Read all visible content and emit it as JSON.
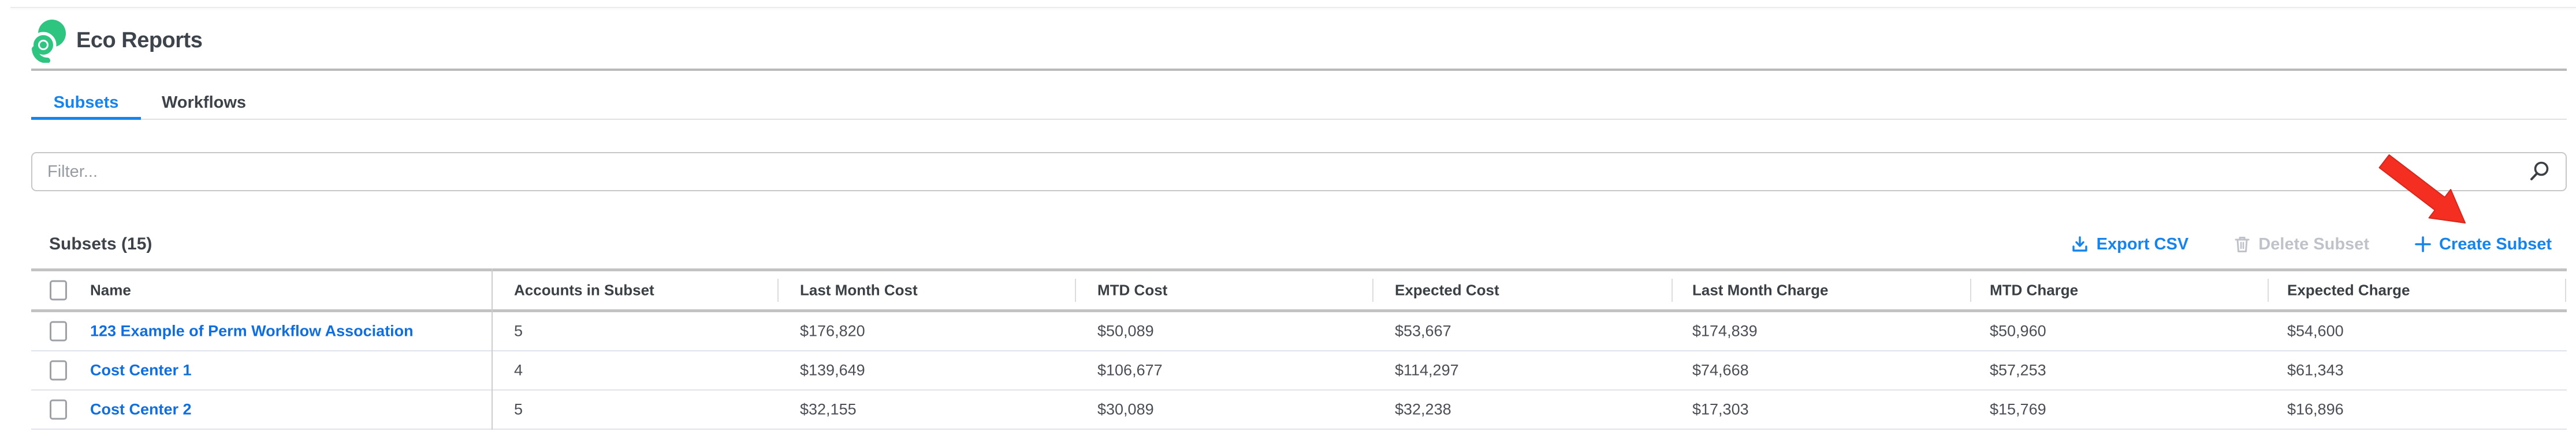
{
  "colors": {
    "accent_blue": "#1584ec",
    "link_blue": "#0f6fdf",
    "logo_green": "#2ec580",
    "arrow_red": "#f42f22",
    "disabled_gray": "#bfc3c9",
    "heading_text": "#3e4349",
    "border_thick": "#c2c2c2",
    "row_separator": "#e0e3ea"
  },
  "icons": {
    "logo": "eco-spiral-logo",
    "filter": "search-icon",
    "export_csv": "download-icon",
    "delete_subset": "trash-icon",
    "create_subset": "plus-icon",
    "annotation": "red-arrow"
  },
  "header": {
    "app_title": "Eco Reports"
  },
  "tabs": [
    {
      "label": "Subsets",
      "active": true
    },
    {
      "label": "Workflows",
      "active": false
    }
  ],
  "filter": {
    "placeholder": "Filter...",
    "value": ""
  },
  "toolbar": {
    "heading": "Subsets (15)",
    "export_csv": "Export CSV",
    "delete_subset": "Delete Subset",
    "create_subset": "Create Subset"
  },
  "annotation": {
    "type": "red-arrow",
    "points_to": "Create Subset"
  },
  "table": {
    "columns": [
      "Name",
      "Accounts in Subset",
      "Last Month Cost",
      "MTD Cost",
      "Expected Cost",
      "Last Month Charge",
      "MTD Charge",
      "Expected Charge"
    ],
    "rows": [
      {
        "name": "123 Example of Perm Workflow Association",
        "accounts": "5",
        "last_month_cost": "$176,820",
        "mtd_cost": "$50,089",
        "expected_cost": "$53,667",
        "last_month_charge": "$174,839",
        "mtd_charge": "$50,960",
        "expected_charge": "$54,600"
      },
      {
        "name": "Cost Center 1",
        "accounts": "4",
        "last_month_cost": "$139,649",
        "mtd_cost": "$106,677",
        "expected_cost": "$114,297",
        "last_month_charge": "$74,668",
        "mtd_charge": "$57,253",
        "expected_charge": "$61,343"
      },
      {
        "name": "Cost Center 2",
        "accounts": "5",
        "last_month_cost": "$32,155",
        "mtd_cost": "$30,089",
        "expected_cost": "$32,238",
        "last_month_charge": "$17,303",
        "mtd_charge": "$15,769",
        "expected_charge": "$16,896"
      }
    ]
  }
}
